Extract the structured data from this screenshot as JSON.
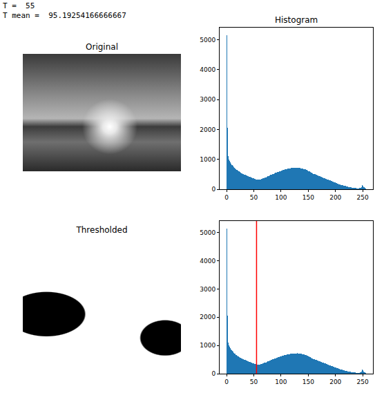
{
  "header": [
    "T =  55",
    "T mean =  95.19254166666667"
  ],
  "images": [
    {
      "title": "Original"
    },
    {
      "title": "Thresholded"
    }
  ],
  "chart_data": [
    {
      "type": "histogram",
      "title": "Histogram",
      "color": "#1f77b4",
      "bins": [
        0,
        1,
        2,
        3,
        4,
        5,
        6,
        7,
        8,
        9,
        10,
        11,
        12,
        13,
        14,
        15,
        16,
        17,
        18,
        19,
        20,
        21,
        22,
        23,
        24,
        25,
        26,
        27,
        28,
        29,
        30,
        31,
        32,
        33,
        34,
        35,
        36,
        37,
        38,
        39,
        40,
        41,
        42,
        43,
        44,
        45,
        46,
        47,
        48,
        49,
        50,
        51,
        52,
        53,
        54,
        55,
        56,
        57,
        58,
        59,
        60,
        61,
        62,
        63,
        64,
        65,
        66,
        67,
        68,
        69,
        70,
        71,
        72,
        73,
        74,
        75,
        76,
        77,
        78,
        79,
        80,
        81,
        82,
        83,
        84,
        85,
        86,
        87,
        88,
        89,
        90,
        91,
        92,
        93,
        94,
        95,
        96,
        97,
        98,
        99,
        100,
        101,
        102,
        103,
        104,
        105,
        106,
        107,
        108,
        109,
        110,
        111,
        112,
        113,
        114,
        115,
        116,
        117,
        118,
        119,
        120,
        121,
        122,
        123,
        124,
        125,
        126,
        127,
        128,
        129,
        130,
        131,
        132,
        133,
        134,
        135,
        136,
        137,
        138,
        139,
        140,
        141,
        142,
        143,
        144,
        145,
        146,
        147,
        148,
        149,
        150,
        151,
        152,
        153,
        154,
        155,
        156,
        157,
        158,
        159,
        160,
        161,
        162,
        163,
        164,
        165,
        166,
        167,
        168,
        169,
        170,
        171,
        172,
        173,
        174,
        175,
        176,
        177,
        178,
        179,
        180,
        181,
        182,
        183,
        184,
        185,
        186,
        187,
        188,
        189,
        190,
        191,
        192,
        193,
        194,
        195,
        196,
        197,
        198,
        199,
        200,
        201,
        202,
        203,
        204,
        205,
        206,
        207,
        208,
        209,
        210,
        211,
        212,
        213,
        214,
        215,
        216,
        217,
        218,
        219,
        220,
        221,
        222,
        223,
        224,
        225,
        226,
        227,
        228,
        229,
        230,
        231,
        232,
        233,
        234,
        235,
        236,
        237,
        238,
        239,
        240,
        241,
        242,
        243,
        244,
        245,
        246,
        247,
        248,
        249,
        250,
        251,
        252,
        253,
        254,
        255,
        256
      ],
      "counts": [
        5150,
        2050,
        1300,
        1100,
        1000,
        950,
        900,
        870,
        850,
        820,
        800,
        780,
        760,
        740,
        720,
        700,
        690,
        670,
        650,
        640,
        620,
        610,
        600,
        590,
        570,
        560,
        550,
        540,
        530,
        520,
        510,
        500,
        495,
        485,
        480,
        470,
        460,
        455,
        445,
        440,
        430,
        420,
        415,
        405,
        400,
        390,
        385,
        375,
        370,
        360,
        355,
        345,
        340,
        335,
        330,
        325,
        320,
        318,
        315,
        320,
        325,
        330,
        335,
        340,
        345,
        350,
        360,
        365,
        370,
        380,
        385,
        395,
        400,
        410,
        420,
        430,
        440,
        450,
        460,
        470,
        475,
        485,
        490,
        500,
        510,
        515,
        520,
        530,
        540,
        545,
        550,
        560,
        565,
        570,
        580,
        585,
        590,
        600,
        605,
        610,
        620,
        625,
        630,
        640,
        645,
        650,
        655,
        660,
        665,
        670,
        675,
        680,
        685,
        690,
        690,
        695,
        700,
        700,
        705,
        705,
        710,
        710,
        712,
        715,
        715,
        718,
        720,
        720,
        720,
        722,
        720,
        718,
        716,
        714,
        710,
        706,
        702,
        698,
        694,
        690,
        685,
        680,
        675,
        670,
        665,
        660,
        650,
        640,
        630,
        620,
        610,
        600,
        590,
        580,
        570,
        560,
        550,
        540,
        530,
        520,
        512,
        505,
        498,
        490,
        485,
        478,
        470,
        462,
        455,
        448,
        440,
        432,
        425,
        418,
        410,
        402,
        395,
        388,
        380,
        372,
        365,
        358,
        350,
        342,
        335,
        328,
        320,
        312,
        305,
        298,
        290,
        282,
        275,
        268,
        260,
        252,
        245,
        238,
        230,
        222,
        215,
        208,
        200,
        192,
        185,
        178,
        170,
        162,
        155,
        150,
        145,
        140,
        135,
        130,
        125,
        120,
        115,
        110,
        105,
        100,
        95,
        90,
        85,
        80,
        76,
        72,
        68,
        64,
        60,
        57,
        54,
        51,
        48,
        45,
        42,
        40,
        38,
        36,
        34,
        32,
        30,
        30,
        30,
        32,
        35,
        40,
        50,
        70,
        110,
        150,
        120,
        80,
        60,
        50,
        40,
        30
      ],
      "xlim": [
        -12.8,
        268.8
      ],
      "xticks": [
        0,
        50,
        100,
        150,
        200,
        250
      ],
      "ylim": [
        0,
        5407
      ],
      "yticks": [
        0,
        1000,
        2000,
        3000,
        4000,
        5000
      ]
    },
    {
      "type": "histogram",
      "color": "#1f77b4",
      "threshold": 55,
      "bins": [
        0,
        1,
        2,
        3,
        4,
        5,
        6,
        7,
        8,
        9,
        10,
        11,
        12,
        13,
        14,
        15,
        16,
        17,
        18,
        19,
        20,
        21,
        22,
        23,
        24,
        25,
        26,
        27,
        28,
        29,
        30,
        31,
        32,
        33,
        34,
        35,
        36,
        37,
        38,
        39,
        40,
        41,
        42,
        43,
        44,
        45,
        46,
        47,
        48,
        49,
        50,
        51,
        52,
        53,
        54,
        55,
        56,
        57,
        58,
        59,
        60,
        61,
        62,
        63,
        64,
        65,
        66,
        67,
        68,
        69,
        70,
        71,
        72,
        73,
        74,
        75,
        76,
        77,
        78,
        79,
        80,
        81,
        82,
        83,
        84,
        85,
        86,
        87,
        88,
        89,
        90,
        91,
        92,
        93,
        94,
        95,
        96,
        97,
        98,
        99,
        100,
        101,
        102,
        103,
        104,
        105,
        106,
        107,
        108,
        109,
        110,
        111,
        112,
        113,
        114,
        115,
        116,
        117,
        118,
        119,
        120,
        121,
        122,
        123,
        124,
        125,
        126,
        127,
        128,
        129,
        130,
        131,
        132,
        133,
        134,
        135,
        136,
        137,
        138,
        139,
        140,
        141,
        142,
        143,
        144,
        145,
        146,
        147,
        148,
        149,
        150,
        151,
        152,
        153,
        154,
        155,
        156,
        157,
        158,
        159,
        160,
        161,
        162,
        163,
        164,
        165,
        166,
        167,
        168,
        169,
        170,
        171,
        172,
        173,
        174,
        175,
        176,
        177,
        178,
        179,
        180,
        181,
        182,
        183,
        184,
        185,
        186,
        187,
        188,
        189,
        190,
        191,
        192,
        193,
        194,
        195,
        196,
        197,
        198,
        199,
        200,
        201,
        202,
        203,
        204,
        205,
        206,
        207,
        208,
        209,
        210,
        211,
        212,
        213,
        214,
        215,
        216,
        217,
        218,
        219,
        220,
        221,
        222,
        223,
        224,
        225,
        226,
        227,
        228,
        229,
        230,
        231,
        232,
        233,
        234,
        235,
        236,
        237,
        238,
        239,
        240,
        241,
        242,
        243,
        244,
        245,
        246,
        247,
        248,
        249,
        250,
        251,
        252,
        253,
        254,
        255,
        256
      ],
      "counts": [
        5150,
        2050,
        1300,
        1100,
        1000,
        950,
        900,
        870,
        850,
        820,
        800,
        780,
        760,
        740,
        720,
        700,
        690,
        670,
        650,
        640,
        620,
        610,
        600,
        590,
        570,
        560,
        550,
        540,
        530,
        520,
        510,
        500,
        495,
        485,
        480,
        470,
        460,
        455,
        445,
        440,
        430,
        420,
        415,
        405,
        400,
        390,
        385,
        375,
        370,
        360,
        355,
        345,
        340,
        335,
        330,
        325,
        320,
        318,
        315,
        320,
        325,
        330,
        335,
        340,
        345,
        350,
        360,
        365,
        370,
        380,
        385,
        395,
        400,
        410,
        420,
        430,
        440,
        450,
        460,
        470,
        475,
        485,
        490,
        500,
        510,
        515,
        520,
        530,
        540,
        545,
        550,
        560,
        565,
        570,
        580,
        585,
        590,
        600,
        605,
        610,
        620,
        625,
        630,
        640,
        645,
        650,
        655,
        660,
        665,
        670,
        675,
        680,
        685,
        690,
        690,
        695,
        700,
        700,
        705,
        705,
        710,
        710,
        712,
        715,
        715,
        718,
        720,
        720,
        720,
        722,
        720,
        718,
        716,
        714,
        710,
        706,
        702,
        698,
        694,
        690,
        685,
        680,
        675,
        670,
        665,
        660,
        650,
        640,
        630,
        620,
        610,
        600,
        590,
        580,
        570,
        560,
        550,
        540,
        530,
        520,
        512,
        505,
        498,
        490,
        485,
        478,
        470,
        462,
        455,
        448,
        440,
        432,
        425,
        418,
        410,
        402,
        395,
        388,
        380,
        372,
        365,
        358,
        350,
        342,
        335,
        328,
        320,
        312,
        305,
        298,
        290,
        282,
        275,
        268,
        260,
        252,
        245,
        238,
        230,
        222,
        215,
        208,
        200,
        192,
        185,
        178,
        170,
        162,
        155,
        150,
        145,
        140,
        135,
        130,
        125,
        120,
        115,
        110,
        105,
        100,
        95,
        90,
        85,
        80,
        76,
        72,
        68,
        64,
        60,
        57,
        54,
        51,
        48,
        45,
        42,
        40,
        38,
        36,
        34,
        32,
        30,
        30,
        30,
        32,
        35,
        40,
        50,
        70,
        110,
        150,
        120,
        80,
        60,
        50,
        40,
        30
      ],
      "xlim": [
        -12.8,
        268.8
      ],
      "xticks": [
        0,
        50,
        100,
        150,
        200,
        250
      ],
      "ylim": [
        0,
        5407
      ],
      "yticks": [
        0,
        1000,
        2000,
        3000,
        4000,
        5000
      ]
    }
  ]
}
